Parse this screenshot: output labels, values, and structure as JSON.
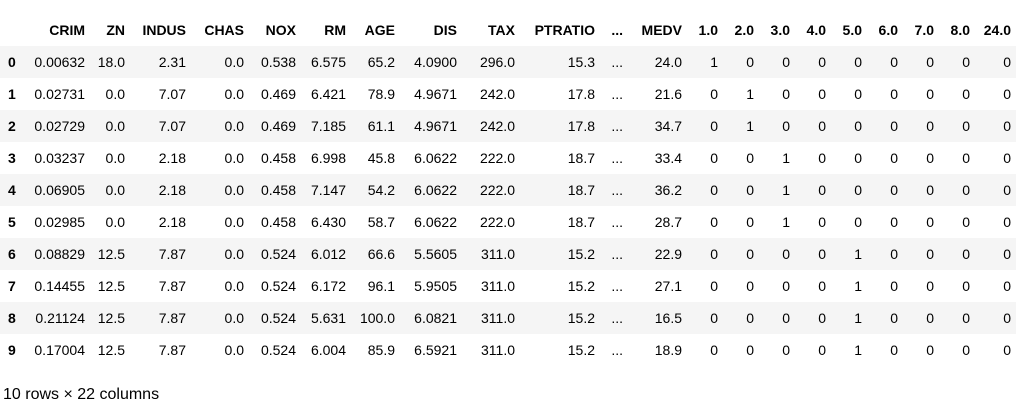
{
  "table": {
    "columns": [
      "CRIM",
      "ZN",
      "INDUS",
      "CHAS",
      "NOX",
      "RM",
      "AGE",
      "DIS",
      "TAX",
      "PTRATIO",
      "...",
      "MEDV",
      "1.0",
      "2.0",
      "3.0",
      "4.0",
      "5.0",
      "6.0",
      "7.0",
      "8.0",
      "24.0"
    ],
    "rows": [
      {
        "index": "0",
        "cells": [
          "0.00632",
          "18.0",
          "2.31",
          "0.0",
          "0.538",
          "6.575",
          "65.2",
          "4.0900",
          "296.0",
          "15.3",
          "...",
          "24.0",
          "1",
          "0",
          "0",
          "0",
          "0",
          "0",
          "0",
          "0",
          "0"
        ]
      },
      {
        "index": "1",
        "cells": [
          "0.02731",
          "0.0",
          "7.07",
          "0.0",
          "0.469",
          "6.421",
          "78.9",
          "4.9671",
          "242.0",
          "17.8",
          "...",
          "21.6",
          "0",
          "1",
          "0",
          "0",
          "0",
          "0",
          "0",
          "0",
          "0"
        ]
      },
      {
        "index": "2",
        "cells": [
          "0.02729",
          "0.0",
          "7.07",
          "0.0",
          "0.469",
          "7.185",
          "61.1",
          "4.9671",
          "242.0",
          "17.8",
          "...",
          "34.7",
          "0",
          "1",
          "0",
          "0",
          "0",
          "0",
          "0",
          "0",
          "0"
        ]
      },
      {
        "index": "3",
        "cells": [
          "0.03237",
          "0.0",
          "2.18",
          "0.0",
          "0.458",
          "6.998",
          "45.8",
          "6.0622",
          "222.0",
          "18.7",
          "...",
          "33.4",
          "0",
          "0",
          "1",
          "0",
          "0",
          "0",
          "0",
          "0",
          "0"
        ]
      },
      {
        "index": "4",
        "cells": [
          "0.06905",
          "0.0",
          "2.18",
          "0.0",
          "0.458",
          "7.147",
          "54.2",
          "6.0622",
          "222.0",
          "18.7",
          "...",
          "36.2",
          "0",
          "0",
          "1",
          "0",
          "0",
          "0",
          "0",
          "0",
          "0"
        ]
      },
      {
        "index": "5",
        "cells": [
          "0.02985",
          "0.0",
          "2.18",
          "0.0",
          "0.458",
          "6.430",
          "58.7",
          "6.0622",
          "222.0",
          "18.7",
          "...",
          "28.7",
          "0",
          "0",
          "1",
          "0",
          "0",
          "0",
          "0",
          "0",
          "0"
        ]
      },
      {
        "index": "6",
        "cells": [
          "0.08829",
          "12.5",
          "7.87",
          "0.0",
          "0.524",
          "6.012",
          "66.6",
          "5.5605",
          "311.0",
          "15.2",
          "...",
          "22.9",
          "0",
          "0",
          "0",
          "0",
          "1",
          "0",
          "0",
          "0",
          "0"
        ]
      },
      {
        "index": "7",
        "cells": [
          "0.14455",
          "12.5",
          "7.87",
          "0.0",
          "0.524",
          "6.172",
          "96.1",
          "5.9505",
          "311.0",
          "15.2",
          "...",
          "27.1",
          "0",
          "0",
          "0",
          "0",
          "1",
          "0",
          "0",
          "0",
          "0"
        ]
      },
      {
        "index": "8",
        "cells": [
          "0.21124",
          "12.5",
          "7.87",
          "0.0",
          "0.524",
          "5.631",
          "100.0",
          "6.0821",
          "311.0",
          "15.2",
          "...",
          "16.5",
          "0",
          "0",
          "0",
          "0",
          "1",
          "0",
          "0",
          "0",
          "0"
        ]
      },
      {
        "index": "9",
        "cells": [
          "0.17004",
          "12.5",
          "7.87",
          "0.0",
          "0.524",
          "6.004",
          "85.9",
          "6.5921",
          "311.0",
          "15.2",
          "...",
          "18.9",
          "0",
          "0",
          "0",
          "0",
          "1",
          "0",
          "0",
          "0",
          "0"
        ]
      }
    ]
  },
  "footer": {
    "shape_text": "10 rows × 22 columns"
  },
  "colors": {
    "stripe": "#f5f5f5",
    "background": "#ffffff",
    "text": "#000000"
  }
}
